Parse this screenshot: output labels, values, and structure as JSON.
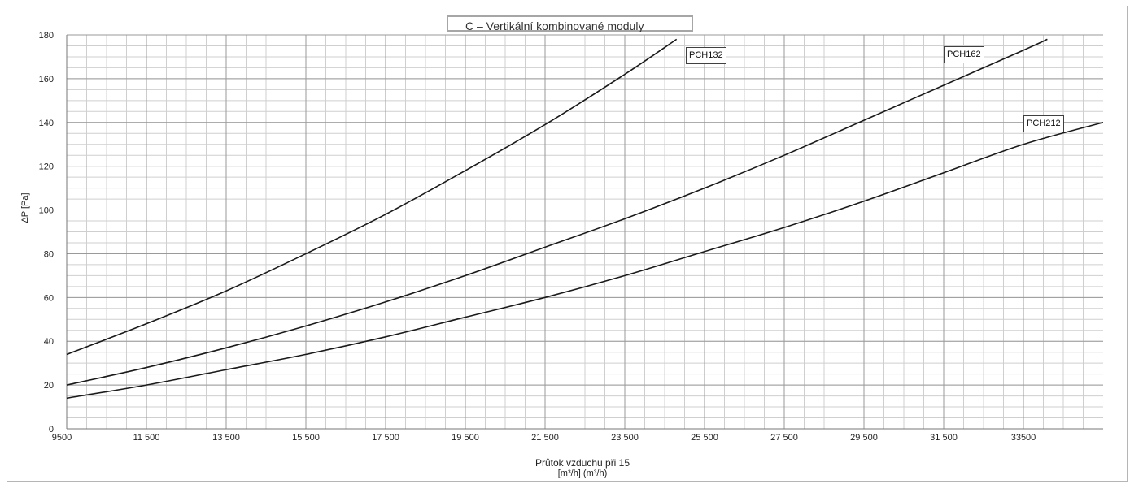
{
  "chart_data": {
    "type": "line",
    "title": "C – Vertikální kombinované moduly",
    "xlabel": "Průtok vzduchu při 15",
    "xlabel_unit": "[m³/h] (m³/h)",
    "ylabel": "ΔP [Pa]",
    "xlim": [
      9500,
      35500
    ],
    "ylim": [
      0,
      180
    ],
    "x_ticks": [
      9500,
      11500,
      13500,
      15500,
      17500,
      19500,
      21500,
      23500,
      25500,
      27500,
      29500,
      31500,
      33500
    ],
    "x_tick_labels": [
      "9500",
      "11 500",
      "13 500",
      "15 500",
      "17 500",
      "19 500",
      "21 500",
      "23 500",
      "25 500",
      "27 500",
      "29 500",
      "31 500",
      "33500"
    ],
    "y_ticks": [
      0,
      20,
      40,
      60,
      80,
      100,
      120,
      140,
      160,
      180
    ],
    "y_tick_labels": [
      "0",
      "20",
      "40",
      "60",
      "80",
      "100",
      "120",
      "140",
      "160",
      "180"
    ],
    "grid": true,
    "series": [
      {
        "name": "PCH132",
        "x": [
          9500,
          11500,
          13500,
          15500,
          17500,
          19500,
          21500,
          23500,
          24800
        ],
        "y": [
          34,
          48,
          63,
          80,
          98,
          118,
          139,
          162,
          178
        ]
      },
      {
        "name": "PCH162",
        "x": [
          9500,
          11500,
          13500,
          15500,
          17500,
          19500,
          21500,
          23500,
          25500,
          27500,
          29500,
          31500,
          33500,
          34100
        ],
        "y": [
          20,
          28,
          37,
          47,
          58,
          70,
          83,
          96,
          110,
          125,
          141,
          157,
          173,
          178
        ]
      },
      {
        "name": "PCH212",
        "x": [
          9500,
          11500,
          13500,
          15500,
          17500,
          19500,
          21500,
          23500,
          25500,
          27500,
          29500,
          31500,
          33500,
          35500
        ],
        "y": [
          14,
          20,
          27,
          34,
          42,
          51,
          60,
          70,
          81,
          92,
          104,
          117,
          130,
          140
        ]
      }
    ]
  }
}
